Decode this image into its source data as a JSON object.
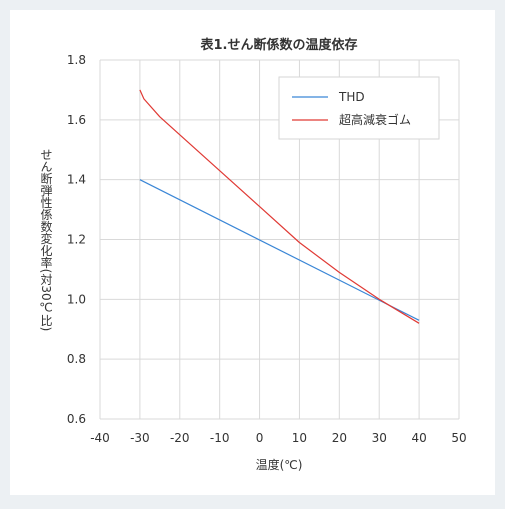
{
  "chart_data": {
    "type": "line",
    "title": "表1.せん断係数の温度依存",
    "xlabel": "温度(℃)",
    "ylabel": "せん断弾性係数変化率(対30℃比)",
    "xlim": [
      -40,
      50
    ],
    "ylim": [
      0.6,
      1.8
    ],
    "xticks": [
      -40,
      -30,
      -20,
      -10,
      0,
      10,
      20,
      30,
      40,
      50
    ],
    "yticks": [
      0.6,
      0.8,
      1.0,
      1.2,
      1.4,
      1.6,
      1.8
    ],
    "xtick_labels": [
      "-40",
      "-30",
      "-20",
      "-10",
      "0",
      "10",
      "20",
      "30",
      "40",
      "50"
    ],
    "ytick_labels": [
      "0.6",
      "0.8",
      "1.0",
      "1.2",
      "1.4",
      "1.6",
      "1.8"
    ],
    "grid": true,
    "legend_position": "top-right",
    "series": [
      {
        "name": "THD",
        "color": "#3a86d6",
        "x": [
          -30,
          40
        ],
        "y": [
          1.4,
          0.93
        ]
      },
      {
        "name": "超高減衰ゴム",
        "color": "#e03a35",
        "x": [
          -30,
          -29,
          -25,
          -20,
          -10,
          0,
          10,
          20,
          30,
          40
        ],
        "y": [
          1.7,
          1.67,
          1.61,
          1.55,
          1.43,
          1.31,
          1.19,
          1.09,
          1.0,
          0.92
        ]
      }
    ]
  }
}
